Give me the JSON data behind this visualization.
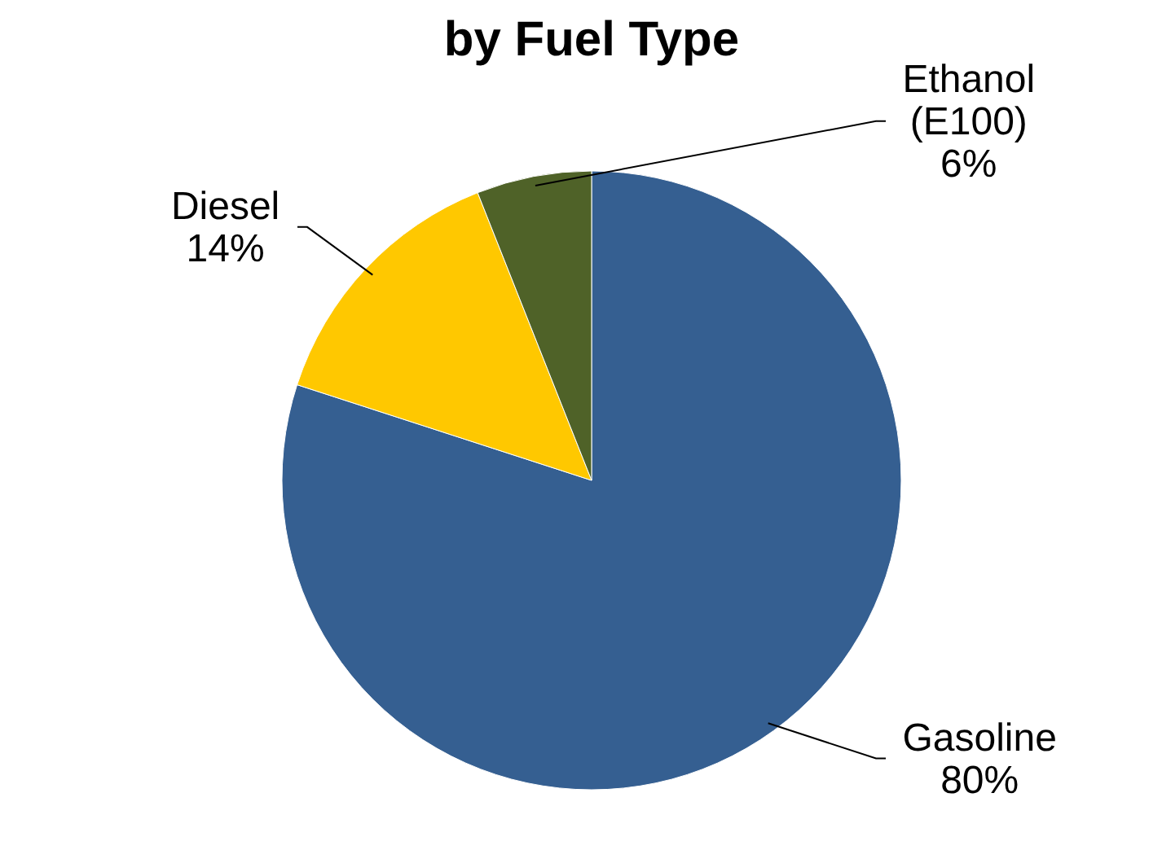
{
  "chart_data": {
    "type": "pie",
    "title": "by Fuel Type",
    "categories": [
      "Gasoline",
      "Diesel",
      "Ethanol (E100)"
    ],
    "values": [
      80,
      14,
      6
    ],
    "value_labels": [
      "80%",
      "14%",
      "6%"
    ],
    "colors": [
      "#355f91",
      "#ffc800",
      "#4f6228"
    ]
  }
}
